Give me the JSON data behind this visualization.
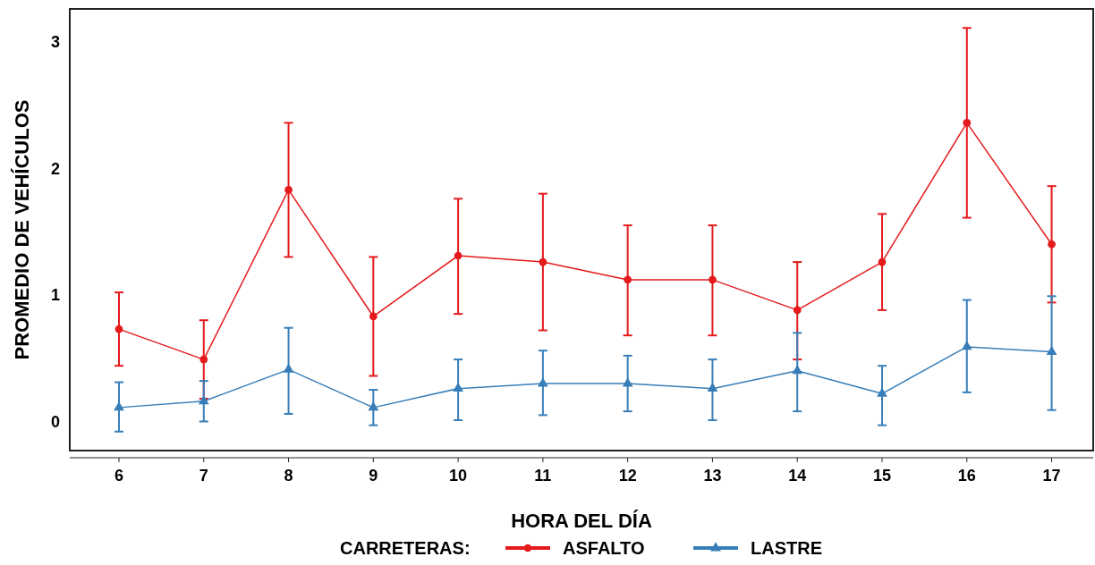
{
  "chart_data": {
    "type": "line",
    "xlabel": "HORA DEL DÍA",
    "ylabel": "PROMEDIO DE VEHÍCULOS",
    "legend_title": "CARRETERAS:",
    "legend": "bottom",
    "grid": false,
    "line_style": "solid",
    "x": [
      6,
      7,
      8,
      9,
      10,
      11,
      12,
      13,
      14,
      15,
      16,
      17
    ],
    "xlim": [
      5.42,
      17.49
    ],
    "xticks": [
      6,
      7,
      8,
      9,
      10,
      11,
      12,
      13,
      14,
      15,
      16,
      17
    ],
    "ylim": [
      -0.23,
      3.26
    ],
    "yticks": [
      0,
      1,
      2,
      3
    ],
    "series": [
      {
        "name": "ASFALTO",
        "color": "#e41a1c",
        "marker": "circle",
        "values": [
          0.73,
          0.49,
          1.83,
          0.83,
          1.31,
          1.26,
          1.12,
          1.12,
          0.88,
          1.26,
          2.36,
          1.4
        ],
        "errors": [
          [
            0.44,
            1.02
          ],
          [
            0.18,
            0.8
          ],
          [
            1.3,
            2.36
          ],
          [
            0.36,
            1.3
          ],
          [
            0.85,
            1.76
          ],
          [
            0.72,
            1.8
          ],
          [
            0.68,
            1.55
          ],
          [
            0.68,
            1.55
          ],
          [
            0.49,
            1.26
          ],
          [
            0.88,
            1.64
          ],
          [
            1.61,
            3.11
          ],
          [
            0.94,
            1.86
          ]
        ]
      },
      {
        "name": "LASTRE",
        "color": "#377eb8",
        "marker": "triangle",
        "values": [
          0.11,
          0.16,
          0.41,
          0.11,
          0.26,
          0.3,
          0.3,
          0.26,
          0.4,
          0.22,
          0.59,
          0.55
        ],
        "errors": [
          [
            -0.08,
            0.31
          ],
          [
            0,
            0.32
          ],
          [
            0.06,
            0.74
          ],
          [
            -0.03,
            0.25
          ],
          [
            0.01,
            0.49
          ],
          [
            0.05,
            0.56
          ],
          [
            0.08,
            0.52
          ],
          [
            0.01,
            0.49
          ],
          [
            0.08,
            0.7
          ],
          [
            -0.03,
            0.44
          ],
          [
            0.23,
            0.96
          ],
          [
            0.09,
            0.99
          ]
        ]
      }
    ]
  }
}
